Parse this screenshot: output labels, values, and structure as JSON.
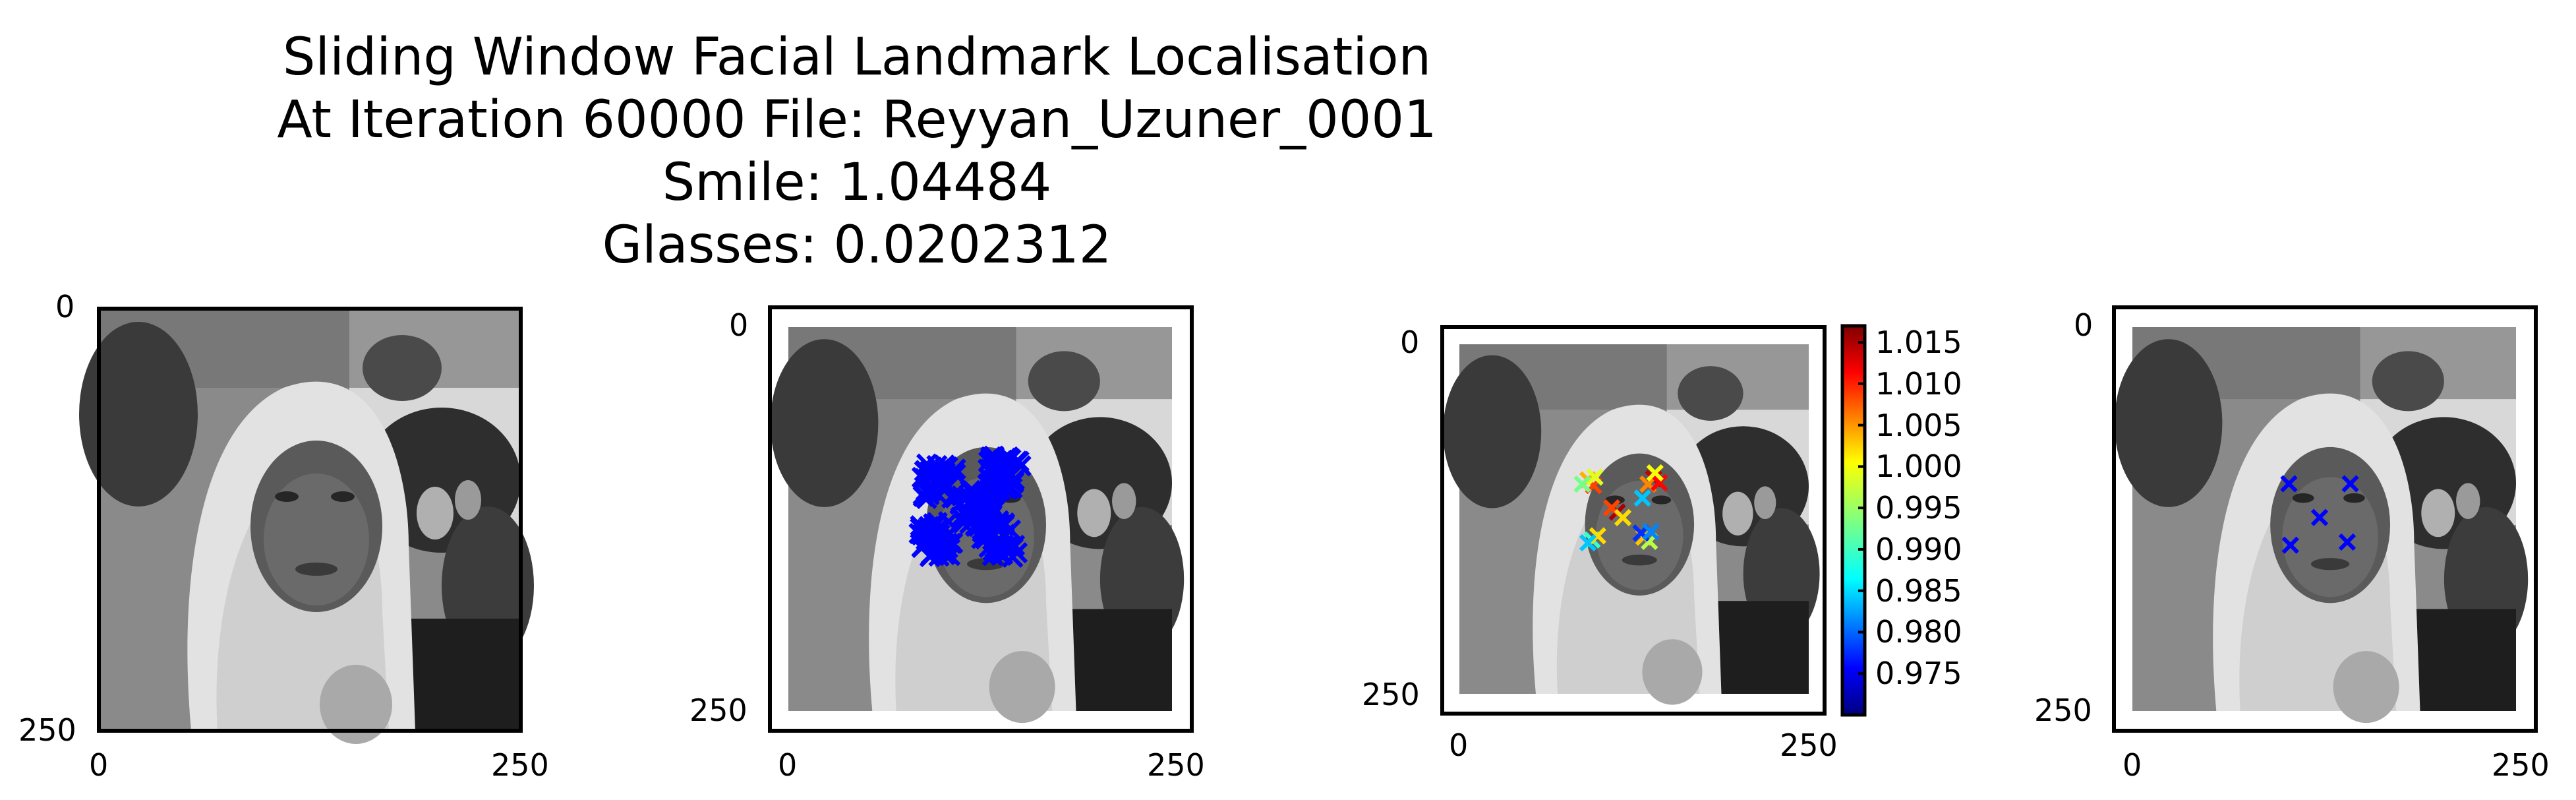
{
  "title": {
    "line1": "Sliding Window Facial Landmark Localisation",
    "line2": "At Iteration 60000 File: Reyyan_Uzuner_0001",
    "line3": "Smile: 1.04484",
    "line4": "Glasses: 0.0202312"
  },
  "chart_data": [
    {
      "type": "image",
      "content": "grayscale face photo",
      "xticks": [
        "0",
        "250"
      ],
      "yticks": [
        "0",
        "250"
      ],
      "xlim": [
        0,
        250
      ],
      "ylim": [
        250,
        0
      ]
    },
    {
      "type": "scatter",
      "content": "face photo with dense blue x markers at sliding-window landmark candidates",
      "marker_color": "#0000ff",
      "xticks": [
        "0",
        "250"
      ],
      "yticks": [
        "0",
        "250"
      ],
      "xlim": [
        0,
        250
      ],
      "ylim": [
        250,
        0
      ],
      "clusters": [
        {
          "x": 98,
          "y": 100
        },
        {
          "x": 142,
          "y": 96
        },
        {
          "x": 123,
          "y": 118
        },
        {
          "x": 96,
          "y": 138
        },
        {
          "x": 138,
          "y": 138
        }
      ]
    },
    {
      "type": "scatter",
      "content": "face photo with landmark candidates colored by score",
      "colormap": "jet",
      "clim": [
        0.97,
        1.017
      ],
      "colorbar_ticks": [
        "1.015",
        "1.010",
        "1.005",
        "1.000",
        "0.995",
        "0.990",
        "0.985",
        "0.980",
        "0.975"
      ],
      "xticks": [
        "0",
        "250"
      ],
      "yticks": [
        "0",
        "250"
      ],
      "xlim": [
        0,
        250
      ],
      "ylim": [
        250,
        0
      ],
      "points": [
        {
          "x": 92,
          "y": 97,
          "v": 1.003
        },
        {
          "x": 96,
          "y": 101,
          "v": 1.008
        },
        {
          "x": 88,
          "y": 100,
          "v": 0.993
        },
        {
          "x": 97,
          "y": 95,
          "v": 0.998
        },
        {
          "x": 139,
          "y": 96,
          "v": 1.014
        },
        {
          "x": 135,
          "y": 100,
          "v": 1.005
        },
        {
          "x": 143,
          "y": 99,
          "v": 1.011
        },
        {
          "x": 131,
          "y": 110,
          "v": 0.985
        },
        {
          "x": 140,
          "y": 92,
          "v": 0.999
        },
        {
          "x": 113,
          "y": 120,
          "v": 1.015
        },
        {
          "x": 109,
          "y": 117,
          "v": 1.008
        },
        {
          "x": 117,
          "y": 124,
          "v": 1.001
        },
        {
          "x": 95,
          "y": 140,
          "v": 0.99
        },
        {
          "x": 99,
          "y": 137,
          "v": 1.001
        },
        {
          "x": 92,
          "y": 142,
          "v": 0.985
        },
        {
          "x": 132,
          "y": 138,
          "v": 1.002
        },
        {
          "x": 136,
          "y": 141,
          "v": 0.996
        },
        {
          "x": 130,
          "y": 135,
          "v": 0.978
        },
        {
          "x": 137,
          "y": 134,
          "v": 0.982
        }
      ]
    },
    {
      "type": "scatter",
      "content": "face photo with final predicted landmarks",
      "marker_color": "#0000ff",
      "xticks": [
        "0",
        "250"
      ],
      "yticks": [
        "0",
        "250"
      ],
      "xlim": [
        0,
        250
      ],
      "ylim": [
        250,
        0
      ],
      "points": [
        {
          "x": 102,
          "y": 102
        },
        {
          "x": 142,
          "y": 102
        },
        {
          "x": 122,
          "y": 124
        },
        {
          "x": 103,
          "y": 142
        },
        {
          "x": 140,
          "y": 140
        }
      ]
    }
  ]
}
